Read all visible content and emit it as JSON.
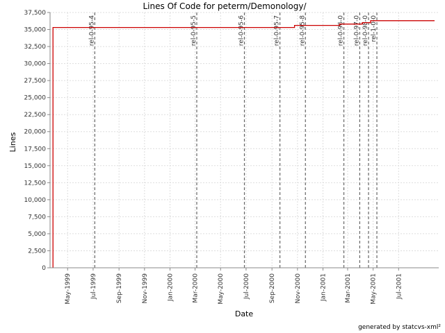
{
  "chart_data": {
    "type": "line",
    "title": "Lines Of Code for peterm/Demonology/",
    "xlabel": "Date",
    "ylabel": "Lines",
    "footer": "generated by statcvs-xml²",
    "ylim": [
      0,
      37500
    ],
    "xlim": [
      "1999-03-20",
      "2001-10-05"
    ],
    "grid": true,
    "colors": {
      "series": "#cc0000",
      "marker": "#666666",
      "grid": "#dddddd"
    },
    "yticks": [
      {
        "value": 0,
        "label": "0"
      },
      {
        "value": 2500,
        "label": "2,500"
      },
      {
        "value": 5000,
        "label": "5,000"
      },
      {
        "value": 7500,
        "label": "7,500"
      },
      {
        "value": 10000,
        "label": "10,000"
      },
      {
        "value": 12500,
        "label": "12,500"
      },
      {
        "value": 15000,
        "label": "15,000"
      },
      {
        "value": 17500,
        "label": "17,500"
      },
      {
        "value": 20000,
        "label": "20,000"
      },
      {
        "value": 22500,
        "label": "22,500"
      },
      {
        "value": 25000,
        "label": "25,000"
      },
      {
        "value": 27500,
        "label": "27,500"
      },
      {
        "value": 30000,
        "label": "30,000"
      },
      {
        "value": 32500,
        "label": "32,500"
      },
      {
        "value": 35000,
        "label": "35,000"
      },
      {
        "value": 37500,
        "label": "37,500"
      }
    ],
    "xticks": [
      {
        "date": "1999-05-01",
        "label": "May-1999"
      },
      {
        "date": "1999-07-01",
        "label": "Jul-1999"
      },
      {
        "date": "1999-09-01",
        "label": "Sep-1999"
      },
      {
        "date": "1999-11-01",
        "label": "Nov-1999"
      },
      {
        "date": "2000-01-01",
        "label": "Jan-2000"
      },
      {
        "date": "2000-03-01",
        "label": "Mar-2000"
      },
      {
        "date": "2000-05-01",
        "label": "May-2000"
      },
      {
        "date": "2000-07-01",
        "label": "Jul-2000"
      },
      {
        "date": "2000-09-01",
        "label": "Sep-2000"
      },
      {
        "date": "2000-11-01",
        "label": "Nov-2000"
      },
      {
        "date": "2001-01-01",
        "label": "Jan-2001"
      },
      {
        "date": "2001-03-01",
        "label": "Mar-2001"
      },
      {
        "date": "2001-05-01",
        "label": "May-2001"
      },
      {
        "date": "2001-07-01",
        "label": "Jul-2001"
      }
    ],
    "series": [
      {
        "type": "step",
        "points": [
          {
            "date": "1999-03-27",
            "value": 0
          },
          {
            "date": "1999-03-27",
            "value": 35300
          },
          {
            "date": "2000-10-25",
            "value": 35300
          },
          {
            "date": "2000-10-25",
            "value": 35600
          },
          {
            "date": "2001-02-10",
            "value": 35600
          },
          {
            "date": "2001-02-10",
            "value": 35800
          },
          {
            "date": "2001-04-05",
            "value": 35800
          },
          {
            "date": "2001-04-05",
            "value": 36000
          },
          {
            "date": "2001-04-25",
            "value": 36000
          },
          {
            "date": "2001-04-25",
            "value": 36300
          },
          {
            "date": "2001-09-25",
            "value": 36300
          }
        ]
      }
    ],
    "markers": [
      {
        "date": "1999-07-05",
        "label": "rel-0-95-4"
      },
      {
        "date": "2000-03-05",
        "label": "rel-0-95-5"
      },
      {
        "date": "2000-06-27",
        "label": "rel-0-95-6"
      },
      {
        "date": "2000-09-20",
        "label": "rel-0-95-7"
      },
      {
        "date": "2000-11-20",
        "label": "rel-0-95-8"
      },
      {
        "date": "2001-02-20",
        "label": "rel-0-96-0"
      },
      {
        "date": "2001-03-30",
        "label": "rel-0-97-0"
      },
      {
        "date": "2001-04-20",
        "label": "rel-0-98-0"
      },
      {
        "date": "2001-05-10",
        "label": "rel-1-0-0"
      }
    ]
  }
}
